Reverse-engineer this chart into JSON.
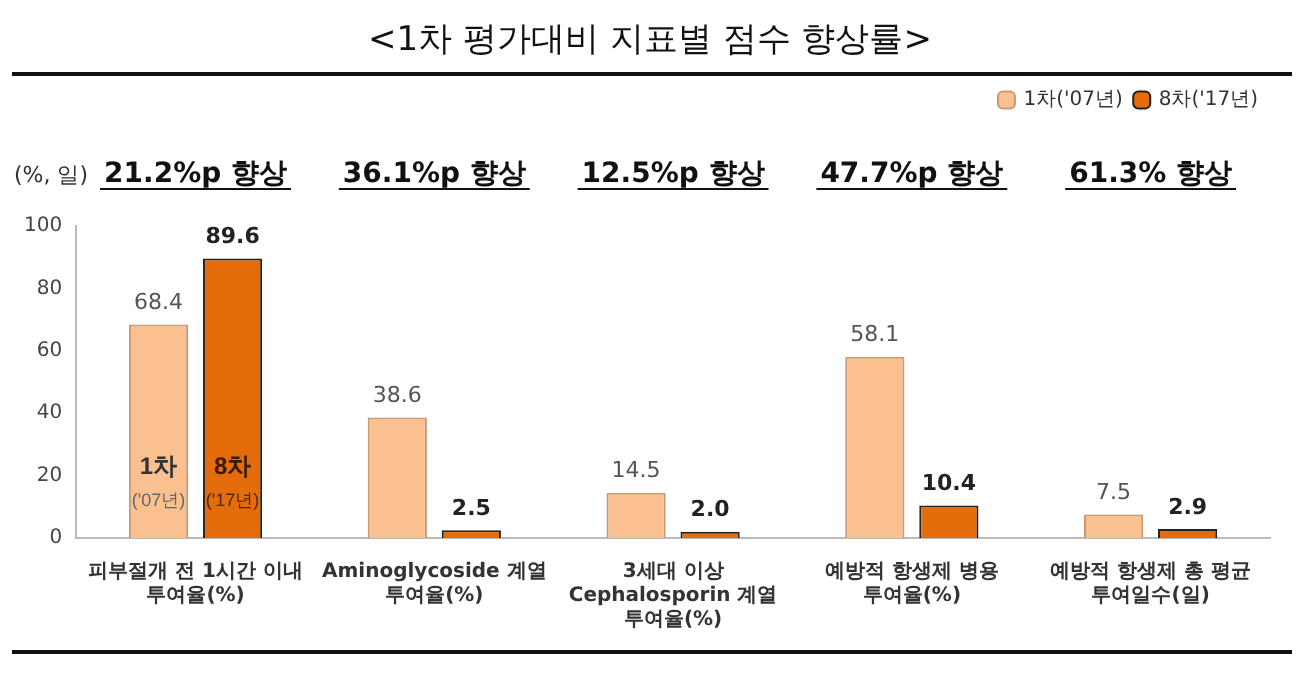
{
  "chart_data": {
    "type": "bar",
    "title": "<1차 평가대비 지표별 점수 향상률>",
    "ylabel": "(%, 일)",
    "categories": [
      "피부절개 전 1시간 이내\n투여율(%)",
      "Aminoglycoside 계열\n투여율(%)",
      "3세대 이상\nCephalosporin 계열\n투여율(%)",
      "예방적 항생제 병용\n투여율(%)",
      "예방적 항생제 총 평균\n투여일수(일)"
    ],
    "series": [
      {
        "name": "1차('07년)",
        "color": "#fac090",
        "values": [
          68.4,
          38.6,
          14.5,
          58.1,
          7.5
        ],
        "value_labels": [
          "68.4",
          "38.6",
          "14.5",
          "58.1",
          "7.5"
        ]
      },
      {
        "name": "8차('17년)",
        "color": "#e46c0a",
        "values": [
          89.6,
          2.5,
          2.0,
          10.4,
          2.9
        ],
        "value_labels": [
          "89.6",
          "2.5",
          "2.0",
          "10.4",
          "2.9"
        ]
      }
    ],
    "ylim": [
      0,
      100
    ],
    "yticks": [
      0,
      20,
      40,
      60,
      80,
      100
    ],
    "grid": false,
    "legend": "top right",
    "annotations": [
      "21.2%p 향상",
      "36.1%p 향상",
      "12.5%p 향상",
      "47.7%p 향상",
      "61.3% 향상",
      "1차\n('07년)",
      "8차\n('17년)"
    ]
  }
}
